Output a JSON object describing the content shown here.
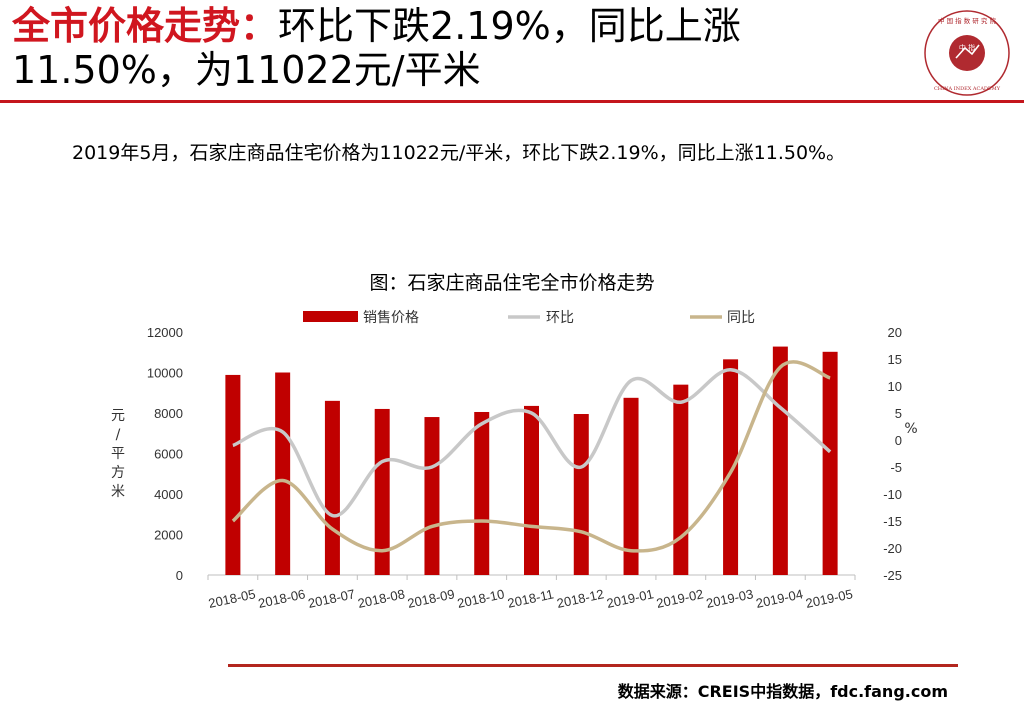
{
  "header": {
    "title_highlight": "全市价格走势：",
    "title_rest": "环比下跌2.19%，同比上涨11.50%，为11022元/平米"
  },
  "logo": {
    "icon": "china-index-academy-seal-icon",
    "center_text": "中 指",
    "ring_text_top": "中 国 指 数 研 究 院",
    "ring_text_bottom": "CHINA INDEX ACADEMY"
  },
  "summary": "2019年5月，石家庄商品住宅价格为11022元/平米，环比下跌2.19%，同比上涨11.50%。",
  "source": "数据来源：CREIS中指数据，fdc.fang.com",
  "colors": {
    "accent": "#c4161c",
    "bar": "#c00000",
    "mom": "#c8c8c8",
    "yoy": "#c8b58c"
  },
  "chart_data": {
    "type": "bar",
    "title": "图：石家庄商品住宅全市价格走势",
    "categories": [
      "2018-05",
      "2018-06",
      "2018-07",
      "2018-08",
      "2018-09",
      "2018-10",
      "2018-11",
      "2018-12",
      "2019-01",
      "2019-02",
      "2019-03",
      "2019-04",
      "2019-05"
    ],
    "series": [
      {
        "name": "销售价格",
        "type": "bar",
        "axis": "left",
        "values": [
          9880,
          10000,
          8600,
          8200,
          7800,
          8050,
          8350,
          7950,
          8750,
          9400,
          10650,
          11280,
          11022
        ]
      },
      {
        "name": "环比",
        "type": "line",
        "axis": "right",
        "values": [
          -1,
          1.5,
          -14,
          -4,
          -5,
          3,
          5,
          -5,
          11,
          7,
          13,
          6,
          -2.19
        ]
      },
      {
        "name": "同比",
        "type": "line",
        "axis": "right",
        "values": [
          -15,
          -7.5,
          -16.5,
          -20.5,
          -16,
          -15,
          -16,
          -17,
          -20.5,
          -18,
          -6,
          13.5,
          11.5
        ]
      }
    ],
    "ylabel": "元/平方米",
    "ylabel_right": "%",
    "ylim": [
      0,
      12000
    ],
    "yticks": [
      "0",
      "2000",
      "4000",
      "6000",
      "8000",
      "10000",
      "12000"
    ],
    "ylim_right": [
      -25,
      20
    ],
    "yticks_right": [
      "-25",
      "-20",
      "-15",
      "-10",
      "-5",
      "0",
      "5",
      "10",
      "15",
      "20"
    ],
    "legend_position": "top",
    "grid": false
  }
}
